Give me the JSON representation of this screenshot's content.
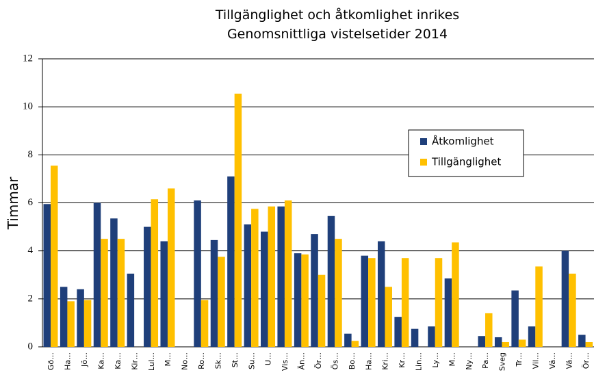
{
  "chart_data": {
    "type": "bar",
    "title": "Tillgänglighet och åtkomlighet inrikes",
    "subtitle": "Genomsnittliga vistelsetider 2014",
    "y_label": "Timmar",
    "categories": [
      "Gö…",
      "Ha…",
      "Jö…",
      "Ka…",
      "Ka…",
      "Kir…",
      "Lul…",
      "M…",
      "No…",
      "Ro…",
      "Sk…",
      "St…",
      "Su…",
      "U…",
      "Vis…",
      "Än…",
      "Ör…",
      "Ös…",
      "Bo…",
      "Ha…",
      "Kri…",
      "Kr…",
      "Lin…",
      "Ly…",
      "M…",
      "Ny…",
      "Pa…",
      "Sveg",
      "Tr…",
      "Vil…",
      "Vä…",
      "Vä…",
      "Ör…"
    ],
    "series": [
      {
        "name": "Åtkomlighet",
        "color": "#1f3f7a",
        "values": [
          5.95,
          2.5,
          2.4,
          6.0,
          5.35,
          3.05,
          5.0,
          4.4,
          0,
          6.1,
          4.45,
          7.1,
          5.1,
          4.8,
          5.85,
          3.9,
          4.7,
          5.45,
          0.55,
          3.8,
          4.4,
          1.25,
          0.75,
          0.85,
          2.85,
          0,
          0.45,
          0.4,
          2.35,
          0.85,
          0,
          4.0,
          0.5
        ]
      },
      {
        "name": "Tillgänglighet",
        "color": "#ffc000",
        "values": [
          7.55,
          1.9,
          1.95,
          4.5,
          4.5,
          0,
          6.15,
          6.6,
          0,
          1.95,
          3.75,
          10.55,
          5.75,
          5.85,
          6.1,
          3.85,
          3.0,
          4.5,
          0.25,
          3.7,
          2.5,
          3.7,
          0,
          3.7,
          4.35,
          0,
          1.4,
          0.2,
          0.3,
          3.35,
          0,
          3.05,
          0.2
        ]
      }
    ],
    "ylim": [
      0,
      12
    ],
    "yticks": [
      0,
      2,
      4,
      6,
      8,
      10,
      12
    ],
    "grid": true
  }
}
